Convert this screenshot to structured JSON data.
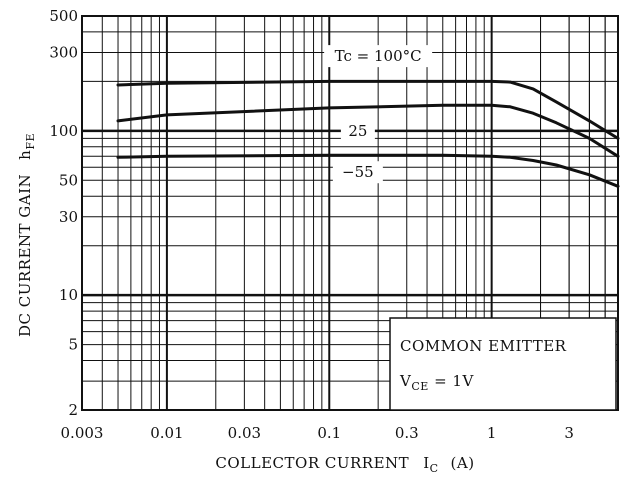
{
  "chart_data": {
    "type": "line",
    "xscale": "log",
    "yscale": "log",
    "xlim": [
      0.003,
      6
    ],
    "ylim": [
      2,
      500
    ],
    "x_ticks": [
      {
        "value": 0.003,
        "label": "0.003"
      },
      {
        "value": 0.01,
        "label": "0.01"
      },
      {
        "value": 0.03,
        "label": "0.03"
      },
      {
        "value": 0.1,
        "label": "0.1"
      },
      {
        "value": 0.3,
        "label": "0.3"
      },
      {
        "value": 1,
        "label": "1"
      },
      {
        "value": 3,
        "label": "3"
      }
    ],
    "y_ticks": [
      {
        "value": 2,
        "label": "2"
      },
      {
        "value": 5,
        "label": "5"
      },
      {
        "value": 10,
        "label": "10"
      },
      {
        "value": 30,
        "label": "30"
      },
      {
        "value": 50,
        "label": "50"
      },
      {
        "value": 100,
        "label": "100"
      },
      {
        "value": 300,
        "label": "300"
      },
      {
        "value": 500,
        "label": "500"
      }
    ],
    "xlabel": {
      "main": "COLLECTOR CURRENT",
      "symbol": "I",
      "subscript": "C",
      "unit": "(A)"
    },
    "ylabel": {
      "main": "DC CURRENT GAIN",
      "symbol": "h",
      "subscript": "FE"
    },
    "series": [
      {
        "name": "Tc = 100°C",
        "label": "Tc = 100°C",
        "x": [
          0.005,
          0.01,
          0.1,
          0.5,
          1,
          1.3,
          1.8,
          2.5,
          4,
          6
        ],
        "y": [
          190,
          195,
          200,
          200,
          200,
          198,
          180,
          150,
          115,
          90
        ]
      },
      {
        "name": "25",
        "label": "25",
        "x": [
          0.005,
          0.01,
          0.1,
          0.5,
          1,
          1.3,
          1.8,
          2.5,
          4,
          6
        ],
        "y": [
          115,
          125,
          138,
          143,
          143,
          140,
          128,
          112,
          90,
          70
        ]
      },
      {
        "name": "−55",
        "label": "−55",
        "x": [
          0.005,
          0.01,
          0.1,
          0.5,
          1,
          1.3,
          1.8,
          2.5,
          4,
          6
        ],
        "y": [
          69,
          70,
          71,
          71,
          70,
          69,
          66,
          62,
          54,
          46
        ]
      }
    ],
    "annotation": {
      "line1": "COMMON EMITTER",
      "line2_symbol": "V",
      "line2_subscript": "CE",
      "line2_rest": " = 1V"
    },
    "grid": true,
    "legend": "none"
  }
}
